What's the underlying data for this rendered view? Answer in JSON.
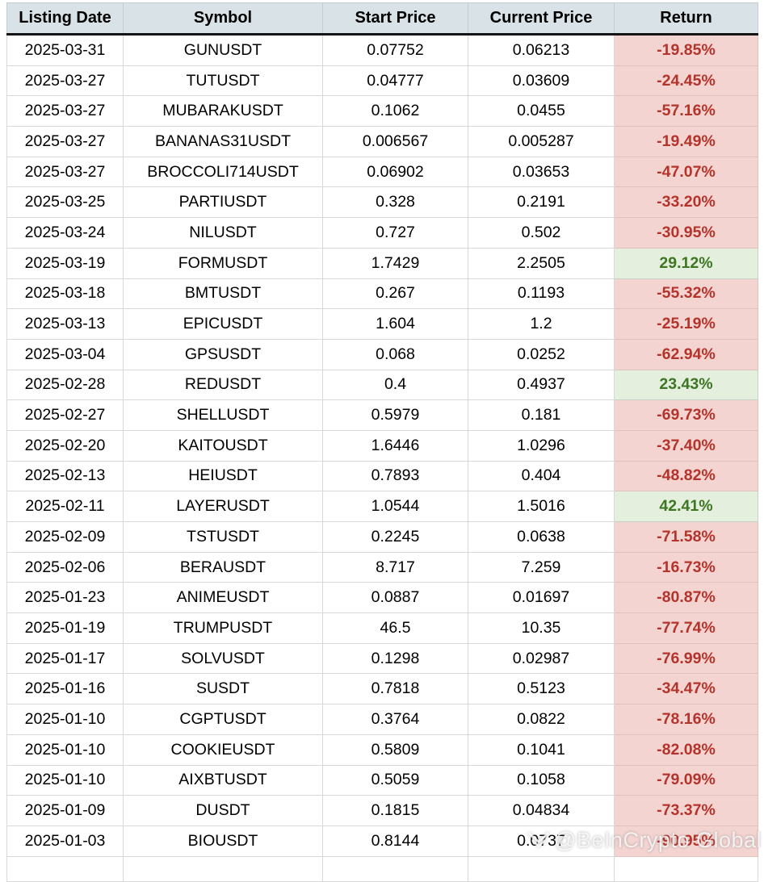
{
  "table": {
    "columns": [
      {
        "key": "date",
        "label": "Listing Date"
      },
      {
        "key": "symbol",
        "label": "Symbol"
      },
      {
        "key": "start",
        "label": "Start Price"
      },
      {
        "key": "current",
        "label": "Current Price"
      },
      {
        "key": "return",
        "label": "Return"
      }
    ],
    "rows": [
      {
        "date": "2025-03-31",
        "symbol": "GUNUSDT",
        "start": "0.07752",
        "current": "0.06213",
        "return": "-19.85%",
        "positive": false
      },
      {
        "date": "2025-03-27",
        "symbol": "TUTUSDT",
        "start": "0.04777",
        "current": "0.03609",
        "return": "-24.45%",
        "positive": false
      },
      {
        "date": "2025-03-27",
        "symbol": "MUBARAKUSDT",
        "start": "0.1062",
        "current": "0.0455",
        "return": "-57.16%",
        "positive": false
      },
      {
        "date": "2025-03-27",
        "symbol": "BANANAS31USDT",
        "start": "0.006567",
        "current": "0.005287",
        "return": "-19.49%",
        "positive": false
      },
      {
        "date": "2025-03-27",
        "symbol": "BROCCOLI714USDT",
        "start": "0.06902",
        "current": "0.03653",
        "return": "-47.07%",
        "positive": false
      },
      {
        "date": "2025-03-25",
        "symbol": "PARTIUSDT",
        "start": "0.328",
        "current": "0.2191",
        "return": "-33.20%",
        "positive": false
      },
      {
        "date": "2025-03-24",
        "symbol": "NILUSDT",
        "start": "0.727",
        "current": "0.502",
        "return": "-30.95%",
        "positive": false
      },
      {
        "date": "2025-03-19",
        "symbol": "FORMUSDT",
        "start": "1.7429",
        "current": "2.2505",
        "return": "29.12%",
        "positive": true
      },
      {
        "date": "2025-03-18",
        "symbol": "BMTUSDT",
        "start": "0.267",
        "current": "0.1193",
        "return": "-55.32%",
        "positive": false
      },
      {
        "date": "2025-03-13",
        "symbol": "EPICUSDT",
        "start": "1.604",
        "current": "1.2",
        "return": "-25.19%",
        "positive": false
      },
      {
        "date": "2025-03-04",
        "symbol": "GPSUSDT",
        "start": "0.068",
        "current": "0.0252",
        "return": "-62.94%",
        "positive": false
      },
      {
        "date": "2025-02-28",
        "symbol": "REDUSDT",
        "start": "0.4",
        "current": "0.4937",
        "return": "23.43%",
        "positive": true
      },
      {
        "date": "2025-02-27",
        "symbol": "SHELLUSDT",
        "start": "0.5979",
        "current": "0.181",
        "return": "-69.73%",
        "positive": false
      },
      {
        "date": "2025-02-20",
        "symbol": "KAITOUSDT",
        "start": "1.6446",
        "current": "1.0296",
        "return": "-37.40%",
        "positive": false
      },
      {
        "date": "2025-02-13",
        "symbol": "HEIUSDT",
        "start": "0.7893",
        "current": "0.404",
        "return": "-48.82%",
        "positive": false
      },
      {
        "date": "2025-02-11",
        "symbol": "LAYERUSDT",
        "start": "1.0544",
        "current": "1.5016",
        "return": "42.41%",
        "positive": true
      },
      {
        "date": "2025-02-09",
        "symbol": "TSTUSDT",
        "start": "0.2245",
        "current": "0.0638",
        "return": "-71.58%",
        "positive": false
      },
      {
        "date": "2025-02-06",
        "symbol": "BERAUSDT",
        "start": "8.717",
        "current": "7.259",
        "return": "-16.73%",
        "positive": false
      },
      {
        "date": "2025-01-23",
        "symbol": "ANIMEUSDT",
        "start": "0.0887",
        "current": "0.01697",
        "return": "-80.87%",
        "positive": false
      },
      {
        "date": "2025-01-19",
        "symbol": "TRUMPUSDT",
        "start": "46.5",
        "current": "10.35",
        "return": "-77.74%",
        "positive": false
      },
      {
        "date": "2025-01-17",
        "symbol": "SOLVUSDT",
        "start": "0.1298",
        "current": "0.02987",
        "return": "-76.99%",
        "positive": false
      },
      {
        "date": "2025-01-16",
        "symbol": "SUSDT",
        "start": "0.7818",
        "current": "0.5123",
        "return": "-34.47%",
        "positive": false
      },
      {
        "date": "2025-01-10",
        "symbol": "CGPTUSDT",
        "start": "0.3764",
        "current": "0.0822",
        "return": "-78.16%",
        "positive": false
      },
      {
        "date": "2025-01-10",
        "symbol": "COOKIEUSDT",
        "start": "0.5809",
        "current": "0.1041",
        "return": "-82.08%",
        "positive": false
      },
      {
        "date": "2025-01-10",
        "symbol": "AIXBTUSDT",
        "start": "0.5059",
        "current": "0.1058",
        "return": "-79.09%",
        "positive": false
      },
      {
        "date": "2025-01-09",
        "symbol": "DUSDT",
        "start": "0.1815",
        "current": "0.04834",
        "return": "-73.37%",
        "positive": false
      },
      {
        "date": "2025-01-03",
        "symbol": "BIOUSDT",
        "start": "0.8144",
        "current": "0.0737",
        "return": "-90.95%",
        "positive": false
      }
    ]
  },
  "watermark": {
    "text": "@BeInCrypto Global",
    "icon": "beincrypto-logo-icon"
  },
  "colors": {
    "header_bg": "#d8e2e7",
    "negative_bg": "#f3d4d1",
    "negative_text": "#b4342c",
    "positive_bg": "#e4efdd",
    "positive_text": "#3e7623",
    "grid_line": "#d9d9d9"
  }
}
